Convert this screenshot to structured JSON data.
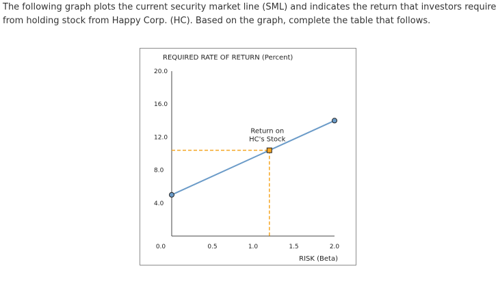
{
  "intro_text": "The following graph plots the current security market line (SML) and indicates the return that investors require from holding stock from Happy Corp. (HC). Based on the graph, complete the table that follows.",
  "colors": {
    "sml_line": "#6b9bc8",
    "endpoint_fill": "#6b9bc8",
    "hc_marker_fill": "#f5a623",
    "guide_line": "#f5a623",
    "axis": "#444444"
  },
  "chart_data": {
    "type": "line",
    "title": "REQUIRED RATE OF RETURN (Percent)",
    "xlabel": "RISK (Beta)",
    "ylabel": "",
    "xlim": [
      0.0,
      2.0
    ],
    "ylim": [
      0.0,
      20.0
    ],
    "x_ticks": [
      "0.0",
      "0.5",
      "1.0",
      "1.5",
      "2.0"
    ],
    "y_ticks": [
      "4.0",
      "8.0",
      "12.0",
      "16.0",
      "20.0"
    ],
    "grid": false,
    "series": [
      {
        "x": [
          0.0,
          2.0
        ],
        "y": [
          5.0,
          14.0
        ]
      }
    ],
    "annotation": {
      "label_line1": "Return on",
      "label_line2": "HC's Stock",
      "x": 1.2,
      "y": 10.4
    }
  }
}
